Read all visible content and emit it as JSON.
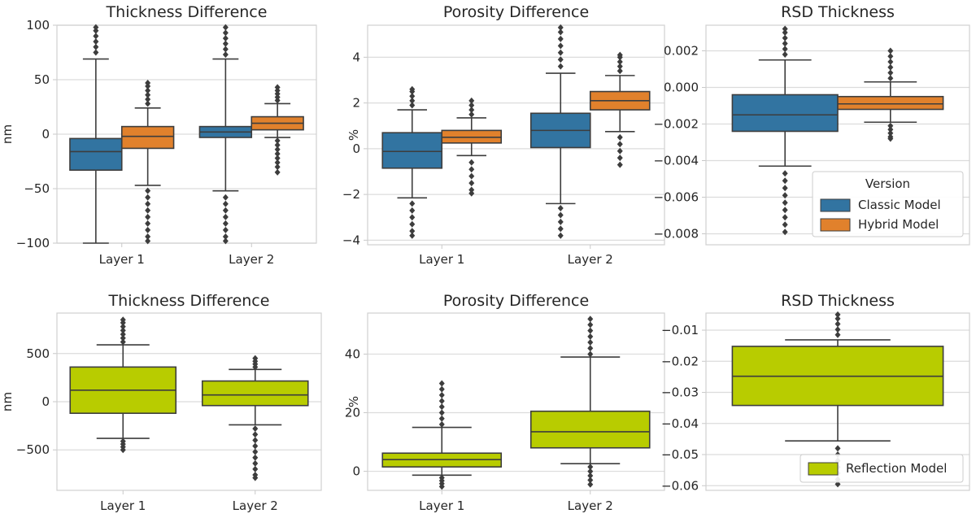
{
  "chart_data": [
    {
      "type": "box",
      "title": "Thickness Difference",
      "ylabel": "nm",
      "ylim": [
        -100,
        100
      ],
      "yticks": [
        -100,
        -50,
        0,
        50,
        100
      ],
      "ytick_labels": [
        "−100",
        "−50",
        "0",
        "50",
        "100"
      ],
      "categories": [
        "Layer 1",
        "Layer 2"
      ],
      "series": [
        {
          "name": "Classic Model",
          "color": "#3274a1",
          "boxes": [
            {
              "whisker_low": -100,
              "q1": -33,
              "median": -16,
              "q3": -4,
              "whisker_high": 69,
              "outliers_low": [],
              "outliers_high": [
                75,
                80,
                85,
                90,
                95,
                98
              ]
            },
            {
              "whisker_low": -52,
              "q1": -3,
              "median": 2,
              "q3": 7,
              "whisker_high": 69,
              "outliers_low": [
                -58,
                -64,
                -70,
                -76,
                -82,
                -88,
                -94,
                -98
              ],
              "outliers_high": [
                73,
                78,
                83,
                88,
                93,
                98
              ]
            }
          ]
        },
        {
          "name": "Hybrid Model",
          "color": "#e1812c",
          "boxes": [
            {
              "whisker_low": -47,
              "q1": -13,
              "median": -2,
              "q3": 7,
              "whisker_high": 24,
              "outliers_low": [
                -52,
                -58,
                -64,
                -70,
                -76,
                -82,
                -88,
                -94,
                -98
              ],
              "outliers_high": [
                28,
                32,
                36,
                40,
                44,
                47
              ]
            },
            {
              "whisker_low": -3,
              "q1": 4,
              "median": 10,
              "q3": 16,
              "whisker_high": 28,
              "outliers_low": [
                -6,
                -10,
                -14,
                -18,
                -22,
                -26,
                -30,
                -35
              ],
              "outliers_high": [
                31,
                34,
                37,
                40,
                43
              ]
            }
          ]
        }
      ]
    },
    {
      "type": "box",
      "title": "Porosity Difference",
      "ylabel": "%",
      "ylim": [
        -4.2,
        5.4
      ],
      "yticks": [
        -4,
        -2,
        0,
        2,
        4
      ],
      "ytick_labels": [
        "−4",
        "−2",
        "0",
        "2",
        "4"
      ],
      "categories": [
        "Layer 1",
        "Layer 2"
      ],
      "series": [
        {
          "name": "Classic Model",
          "color": "#3274a1",
          "boxes": [
            {
              "whisker_low": -2.15,
              "q1": -0.85,
              "median": -0.12,
              "q3": 0.7,
              "whisker_high": 1.7,
              "outliers_low": [
                -2.4,
                -2.7,
                -3.0,
                -3.3,
                -3.6,
                -3.8
              ],
              "outliers_high": [
                1.9,
                2.1,
                2.3,
                2.5,
                2.6
              ]
            },
            {
              "whisker_low": -2.4,
              "q1": 0.05,
              "median": 0.8,
              "q3": 1.55,
              "whisker_high": 3.3,
              "outliers_low": [
                -2.6,
                -2.9,
                -3.2,
                -3.5,
                -3.8
              ],
              "outliers_high": [
                3.6,
                3.9,
                4.2,
                4.5,
                4.8,
                5.1,
                5.3
              ]
            }
          ]
        },
        {
          "name": "Hybrid Model",
          "color": "#e1812c",
          "boxes": [
            {
              "whisker_low": -0.3,
              "q1": 0.25,
              "median": 0.5,
              "q3": 0.8,
              "whisker_high": 1.35,
              "outliers_low": [
                -0.6,
                -0.9,
                -1.2,
                -1.5,
                -1.8,
                -1.95
              ],
              "outliers_high": [
                1.5,
                1.7,
                1.9,
                2.1
              ]
            },
            {
              "whisker_low": 0.75,
              "q1": 1.7,
              "median": 2.1,
              "q3": 2.5,
              "whisker_high": 3.2,
              "outliers_low": [
                0.5,
                0.2,
                -0.1,
                -0.4,
                -0.7
              ],
              "outliers_high": [
                3.4,
                3.6,
                3.8,
                4.0,
                4.1
              ]
            }
          ]
        }
      ]
    },
    {
      "type": "box",
      "title": "RSD Thickness",
      "ylabel": "",
      "ylim": [
        -0.0086,
        0.0034
      ],
      "yticks": [
        -0.008,
        -0.006,
        -0.004,
        -0.002,
        0.0,
        0.002
      ],
      "ytick_labels": [
        "−0.008",
        "−0.006",
        "−0.004",
        "−0.002",
        "0.000",
        "0.002"
      ],
      "categories": [
        ""
      ],
      "series": [
        {
          "name": "Classic Model",
          "color": "#3274a1",
          "boxes": [
            {
              "whisker_low": -0.0043,
              "q1": -0.0024,
              "median": -0.0015,
              "q3": -0.0004,
              "whisker_high": 0.0015,
              "outliers_low": [
                -0.0047,
                -0.0051,
                -0.0055,
                -0.0059,
                -0.0063,
                -0.0067,
                -0.0071,
                -0.0075,
                -0.0079
              ],
              "outliers_high": [
                0.0018,
                0.0021,
                0.0024,
                0.0027,
                0.003,
                0.0032
              ]
            }
          ]
        },
        {
          "name": "Hybrid Model",
          "color": "#e1812c",
          "boxes": [
            {
              "whisker_low": -0.0019,
              "q1": -0.0012,
              "median": -0.0009,
              "q3": -0.0005,
              "whisker_high": 0.0003,
              "outliers_low": [
                -0.0021,
                -0.0023,
                -0.0025,
                -0.0027,
                -0.0028
              ],
              "outliers_high": [
                0.0005,
                0.0008,
                0.0011,
                0.0014,
                0.0017,
                0.002
              ]
            }
          ]
        }
      ],
      "legend": {
        "title": "Version",
        "placement": "lower-right",
        "entries": [
          "Classic Model",
          "Hybrid Model"
        ]
      }
    },
    {
      "type": "box",
      "title": "Thickness Difference",
      "ylabel": "nm",
      "ylim": [
        -920,
        920
      ],
      "yticks": [
        -500,
        0,
        500
      ],
      "ytick_labels": [
        "−500",
        "0",
        "500"
      ],
      "categories": [
        "Layer 1",
        "Layer 2"
      ],
      "series": [
        {
          "name": "Reflection Model",
          "color": "#b8cc00",
          "boxes": [
            {
              "whisker_low": -380,
              "q1": -120,
              "median": 120,
              "q3": 360,
              "whisker_high": 590,
              "outliers_low": [
                -410,
                -440,
                -470,
                -500
              ],
              "outliers_high": [
                620,
                660,
                700,
                740,
                780,
                820,
                850
              ]
            },
            {
              "whisker_low": -240,
              "q1": -40,
              "median": 70,
              "q3": 215,
              "whisker_high": 335,
              "outliers_low": [
                -280,
                -340,
                -400,
                -460,
                -520,
                -580,
                -640,
                -700,
                -760,
                -790
              ],
              "outliers_high": [
                360,
                390,
                420,
                450
              ]
            }
          ]
        }
      ]
    },
    {
      "type": "box",
      "title": "Porosity Difference",
      "ylabel": "%",
      "ylim": [
        -6.5,
        54
      ],
      "yticks": [
        0,
        20,
        40
      ],
      "ytick_labels": [
        "0",
        "20",
        "40"
      ],
      "categories": [
        "Layer 1",
        "Layer 2"
      ],
      "series": [
        {
          "name": "Reflection Model",
          "color": "#b8cc00",
          "boxes": [
            {
              "whisker_low": -1.3,
              "q1": 1.5,
              "median": 4,
              "q3": 6.2,
              "whisker_high": 15,
              "outliers_low": [
                -2.2,
                -3.2,
                -4.2,
                -5.2
              ],
              "outliers_high": [
                16,
                18,
                20,
                22,
                24,
                26,
                28,
                30
              ]
            },
            {
              "whisker_low": 2.6,
              "q1": 8,
              "median": 13.5,
              "q3": 20.5,
              "whisker_high": 39,
              "outliers_low": [
                1.5,
                0,
                -1.5,
                -3,
                -4.5
              ],
              "outliers_high": [
                40,
                42,
                44,
                46,
                48,
                50,
                52
              ]
            }
          ]
        }
      ]
    },
    {
      "type": "box",
      "title": "RSD Thickness",
      "ylabel": "",
      "ylim": [
        -0.0615,
        -0.0045
      ],
      "yticks": [
        -0.06,
        -0.05,
        -0.04,
        -0.03,
        -0.02,
        -0.01
      ],
      "ytick_labels": [
        "−0.06",
        "−0.05",
        "−0.04",
        "−0.03",
        "−0.02",
        "−0.01"
      ],
      "categories": [
        ""
      ],
      "series": [
        {
          "name": "Reflection Model",
          "color": "#b8cc00",
          "boxes": [
            {
              "whisker_low": -0.0456,
              "q1": -0.0342,
              "median": -0.0248,
              "q3": -0.0152,
              "whisker_high": -0.0131,
              "outliers_low": [
                -0.048,
                -0.05,
                -0.052,
                -0.054,
                -0.056,
                -0.058,
                -0.0595
              ],
              "outliers_high": [
                -0.0115,
                -0.0098,
                -0.008,
                -0.0063,
                -0.005
              ]
            }
          ]
        }
      ],
      "legend": {
        "title": "",
        "placement": "lower-right",
        "entries": [
          "Reflection Model"
        ]
      }
    }
  ]
}
